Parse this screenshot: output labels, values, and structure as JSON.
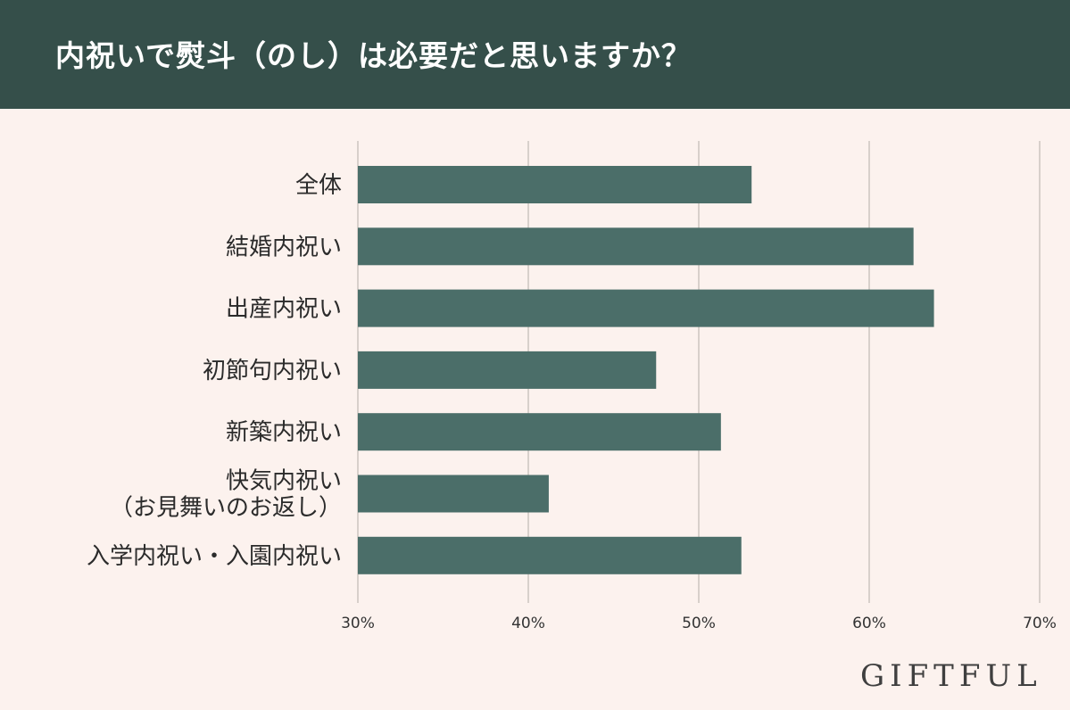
{
  "title": "内祝いで熨斗（のし）は必要だと思いますか？",
  "logo": "GIFTFUL",
  "colors": {
    "header_bg": "#354f4a",
    "background": "#fcf2ee",
    "bar": "#4b6e69",
    "grid": "#d8d0cb"
  },
  "chart_data": {
    "type": "bar",
    "orientation": "horizontal",
    "categories": [
      [
        "全体"
      ],
      [
        "結婚内祝い"
      ],
      [
        "出産内祝い"
      ],
      [
        "初節句内祝い"
      ],
      [
        "新築内祝い"
      ],
      [
        "快気内祝い",
        "（お見舞いのお返し）"
      ],
      [
        "入学内祝い・入園内祝い"
      ]
    ],
    "values": [
      53.1,
      62.6,
      63.8,
      47.5,
      51.3,
      41.2,
      52.5
    ],
    "xlim": [
      30,
      70
    ],
    "xticks": [
      "30%",
      "40%",
      "50%",
      "60%",
      "70%"
    ],
    "grid": true
  }
}
